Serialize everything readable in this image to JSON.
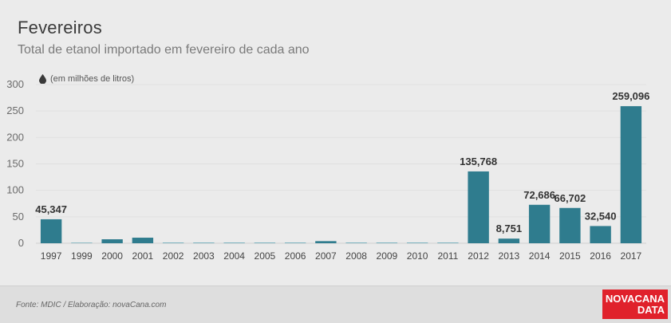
{
  "header": {
    "title": "Fevereiros",
    "subtitle": "Total de etanol importado em fevereiro de cada ano"
  },
  "unit_note": "(em milhões de litros)",
  "icons": {
    "unit": "drop-icon"
  },
  "footer": {
    "source": "Fonte: MDIC / Elaboração: novaCana.com",
    "logo_line1": "NOVACANA",
    "logo_line2": "DATA"
  },
  "colors": {
    "bar": "#2f7c8e",
    "bar_small": "#5ea3b2",
    "background": "#ebebeb",
    "logo": "#e0212b"
  },
  "chart_data": {
    "type": "bar",
    "title": "Fevereiros",
    "subtitle": "Total de etanol importado em fevereiro de cada ano",
    "ylabel": "(em milhões de litros)",
    "ylim": [
      0,
      300
    ],
    "yticks": [
      0,
      50,
      100,
      150,
      200,
      250,
      300
    ],
    "grid": true,
    "categories": [
      "1997",
      "1999",
      "2000",
      "2001",
      "2002",
      "2003",
      "2004",
      "2005",
      "2006",
      "2007",
      "2008",
      "2009",
      "2010",
      "2011",
      "2012",
      "2013",
      "2014",
      "2015",
      "2016",
      "2017"
    ],
    "values": [
      45.347,
      1,
      7.5,
      10.5,
      1.2,
      1.2,
      1.2,
      1.2,
      1.2,
      4,
      1.2,
      1.2,
      1.2,
      1.2,
      135.768,
      8.751,
      72.686,
      66.702,
      32.54,
      259.096
    ],
    "data_labels": [
      "45,347",
      "",
      "",
      "",
      "",
      "",
      "",
      "",
      "",
      "",
      "",
      "",
      "",
      "",
      "135,768",
      "8,751",
      "72,686",
      "66,702",
      "32,540",
      "259,096"
    ]
  }
}
